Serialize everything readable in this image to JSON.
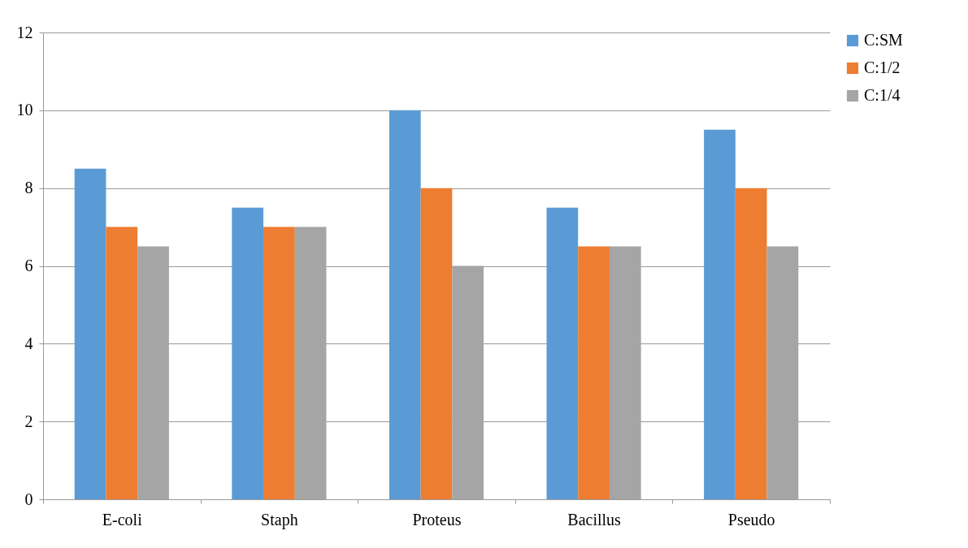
{
  "chart_data": {
    "type": "bar",
    "categories": [
      "E-coli",
      "Staph",
      "Proteus",
      "Bacillus",
      "Pseudo"
    ],
    "series": [
      {
        "name": "C:SM",
        "color": "#5b9bd5",
        "values": [
          8.5,
          7.5,
          10,
          7.5,
          9.5
        ]
      },
      {
        "name": "C:1/2",
        "color": "#ed7d31",
        "values": [
          7,
          7,
          8,
          6.5,
          8
        ]
      },
      {
        "name": "C:1/4",
        "color": "#a5a5a5",
        "values": [
          6.5,
          7,
          6,
          6.5,
          6.5
        ]
      }
    ],
    "ylim": [
      0,
      12
    ],
    "yticks": [
      0,
      2,
      4,
      6,
      8,
      10,
      12
    ],
    "grid": "y",
    "legend": "right"
  }
}
